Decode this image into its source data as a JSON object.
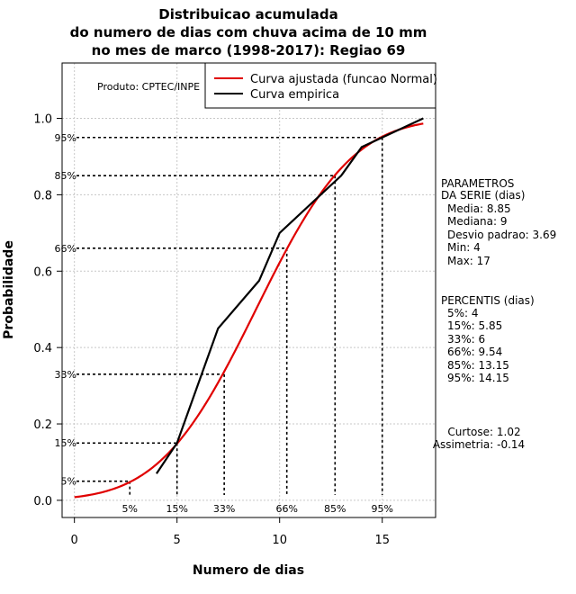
{
  "chart_data": {
    "type": "line",
    "title": [
      "Distribuicao acumulada",
      "do numero de dias com chuva acima de 10 mm",
      "no mes de marco (1998-2017): Regiao 69"
    ],
    "xlabel": "Numero de dias",
    "ylabel": "Probabilidade",
    "xlim": [
      -0.6,
      17.6
    ],
    "ylim": [
      -0.045,
      1.145
    ],
    "xticks": [
      0,
      5,
      10,
      15
    ],
    "yticks": [
      0.0,
      0.2,
      0.4,
      0.6,
      0.8,
      1.0
    ],
    "grid": true,
    "legend_position": "top-right",
    "producer_note": "Produto: CPTEC/INPE",
    "series": [
      {
        "name": "Curva ajustada (funcao Normal)",
        "color": "#e00000",
        "kind": "normal_cdf",
        "mean": 8.85,
        "sd": 3.69,
        "x_range": [
          0,
          17
        ]
      },
      {
        "name": "Curva empirica",
        "color": "#000000",
        "x": [
          4,
          5,
          7,
          9,
          10,
          13,
          14,
          17
        ],
        "y": [
          0.07,
          0.15,
          0.45,
          0.575,
          0.7,
          0.85,
          0.925,
          1.0
        ]
      }
    ],
    "percentile_markers": [
      {
        "label": "5%",
        "x": 2.7,
        "y": 0.05
      },
      {
        "label": "15%",
        "x": 5.0,
        "y": 0.15
      },
      {
        "label": "33%",
        "x": 7.3,
        "y": 0.33
      },
      {
        "label": "66%",
        "x": 10.35,
        "y": 0.66
      },
      {
        "label": "85%",
        "x": 12.7,
        "y": 0.85
      },
      {
        "label": "95%",
        "x": 15.0,
        "y": 0.95
      }
    ]
  },
  "params": {
    "header": [
      "PARAMETROS",
      "DA SERIE (dias)"
    ],
    "lines": [
      "Media: 8.85",
      "Mediana: 9",
      "Desvio padrao: 3.69",
      "Min: 4",
      "Max: 17"
    ]
  },
  "percentis": {
    "header": "PERCENTIS (dias)",
    "lines": [
      "5%: 4",
      "15%: 5.85",
      "33%: 6",
      "66%: 9.54",
      "85%: 13.15",
      "95%: 14.15"
    ]
  },
  "shape": {
    "lines": [
      "Curtose: 1.02",
      "Assimetria: -0.14"
    ]
  }
}
